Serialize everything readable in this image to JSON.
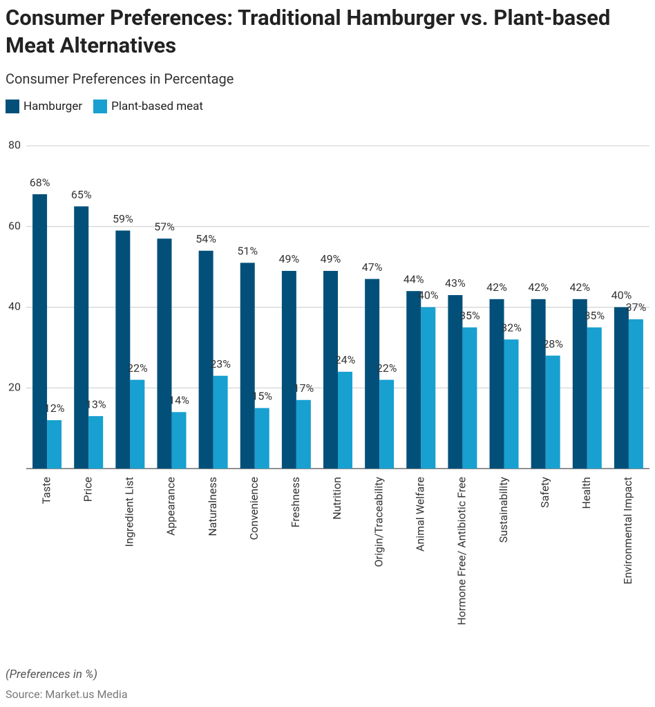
{
  "chart_data": {
    "type": "bar",
    "title": "Consumer Preferences: Traditional Hamburger vs. Plant-based Meat Alternatives",
    "subtitle": "Consumer Preferences in Percentage",
    "categories": [
      "Taste",
      "Price",
      "Ingredient List",
      "Appearance",
      "Naturalness",
      "Convenience",
      "Freshness",
      "Nutrition",
      "Origin/Traceability",
      "Animal Welfare",
      "Hormone Free/ Antibiotic Free",
      "Sustainability",
      "Safety",
      "Health",
      "Environmental Impact"
    ],
    "series": [
      {
        "name": "Hamburger",
        "color": "#02507a",
        "values": [
          68,
          65,
          59,
          57,
          54,
          51,
          49,
          49,
          47,
          44,
          43,
          42,
          42,
          42,
          40
        ],
        "value_labels": [
          "68%",
          "65%",
          "59%",
          "57%",
          "54%",
          "51%",
          "49%",
          "49%",
          "47%",
          "44%",
          "43%",
          "42%",
          "42%",
          "42%",
          "40%"
        ]
      },
      {
        "name": "Plant-based meat",
        "color": "#17a0d0",
        "values": [
          12,
          13,
          22,
          14,
          23,
          15,
          17,
          24,
          22,
          40,
          35,
          32,
          28,
          35,
          37
        ],
        "value_labels": [
          "12%",
          "13%",
          "22%",
          "14%",
          "23%",
          "15%",
          "17%",
          "24%",
          "22%",
          "40%",
          "35%",
          "32%",
          "28%",
          "35%",
          "37%"
        ]
      }
    ],
    "ylim": [
      0,
      80
    ],
    "yticks": [
      20,
      40,
      60,
      80
    ],
    "grid": true,
    "legend": "top-left",
    "note": "(Preferences in %)",
    "source": "Source: Market.us Media"
  }
}
